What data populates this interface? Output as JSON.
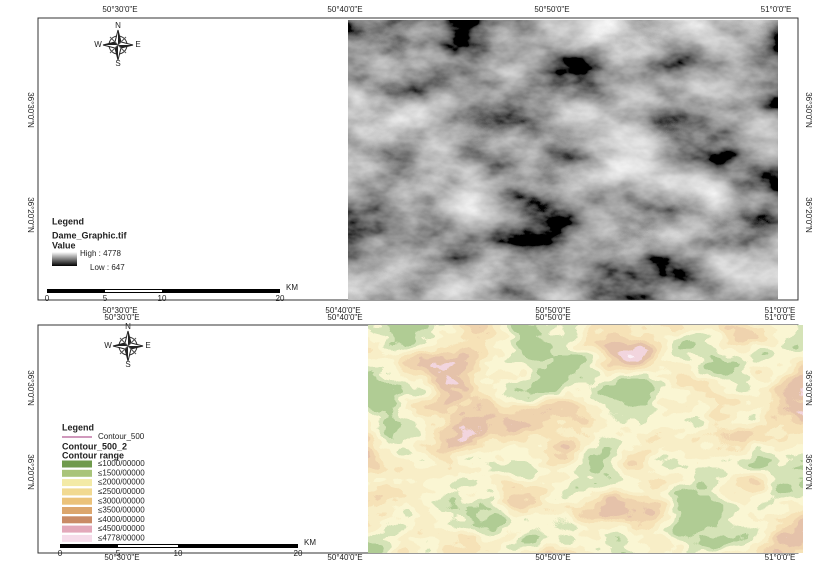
{
  "top_panel": {
    "top_labels": [
      "50°30'0\"E",
      "50°40'0\"E",
      "50°50'0\"E",
      "51°0'0\"E"
    ],
    "bottom_labels": [
      "50°30'0\"E",
      "50°40'0\"E",
      "50°50'0\"E",
      "51°0'0\"E"
    ],
    "lat_labels": [
      "36°30'0\"N",
      "36°20'0\"N"
    ],
    "compass": {
      "n": "N",
      "s": "S",
      "e": "E",
      "w": "W"
    },
    "legend": {
      "title": "Legend",
      "layer": "Dame_Graphic.tif",
      "field": "Value",
      "high": "High : 4778",
      "low": "Low : 647"
    },
    "scale": {
      "ticks": [
        "0",
        "5",
        "10",
        "20"
      ],
      "unit": "KM"
    }
  },
  "bottom_panel": {
    "top_labels": [
      "50°30'0\"E",
      "50°40'0\"E",
      "50°50'0\"E",
      "51°0'0\"E"
    ],
    "bottom_labels": [
      "50°30'0\"E",
      "50°40'0\"E",
      "50°50'0\"E",
      "51°0'0\"E"
    ],
    "lat_labels": [
      "36°30'0\"N",
      "36°20'0\"N"
    ],
    "compass": {
      "n": "N",
      "s": "S",
      "e": "E",
      "w": "W"
    },
    "legend": {
      "title": "Legend",
      "line_layer": "Contour_500",
      "layer": "Contour_500_2",
      "field": "Contour range",
      "items": [
        {
          "label": "≤1000/00000",
          "color": "#6f9a4c"
        },
        {
          "label": "≤1500/00000",
          "color": "#a9c47a"
        },
        {
          "label": "≤2000/00000",
          "color": "#f3eaa6"
        },
        {
          "label": "≤2500/00000",
          "color": "#f1d991"
        },
        {
          "label": "≤3000/00000",
          "color": "#ebc27a"
        },
        {
          "label": "≤3500/00000",
          "color": "#dca66d"
        },
        {
          "label": "≤4000/00000",
          "color": "#c98b66"
        },
        {
          "label": "≤4500/00000",
          "color": "#e3a9bb"
        },
        {
          "label": "≤4778/00000",
          "color": "#f6dcea"
        }
      ]
    },
    "scale": {
      "ticks": [
        "0",
        "5",
        "10",
        "20"
      ],
      "unit": "KM"
    }
  }
}
